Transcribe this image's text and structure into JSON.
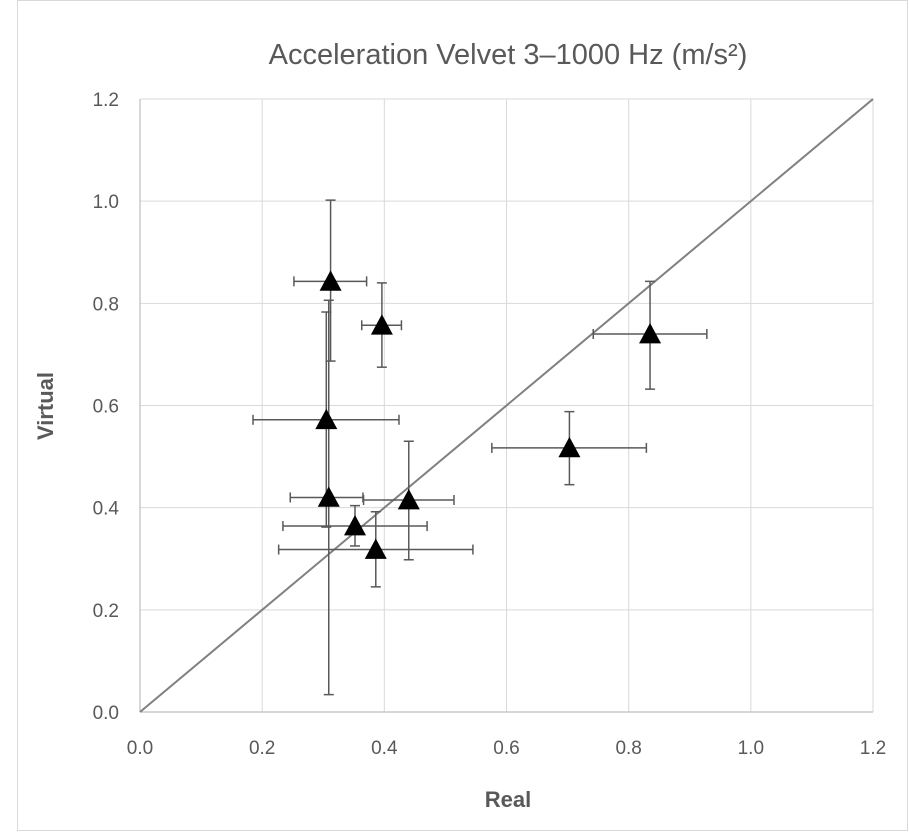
{
  "chart_data": {
    "type": "scatter",
    "title": "Acceleration Velvet 3–1000 Hz (m/s²)",
    "xlabel": "Real",
    "ylabel": "Virtual",
    "xlim": [
      0.0,
      1.2
    ],
    "ylim": [
      0.0,
      1.2
    ],
    "x_ticks": [
      "0.0",
      "0.2",
      "0.4",
      "0.6",
      "0.8",
      "1.0",
      "1.2"
    ],
    "y_ticks": [
      "0.0",
      "0.2",
      "0.4",
      "0.6",
      "0.8",
      "1.0",
      "1.2"
    ],
    "grid": true,
    "legend": "none",
    "reference_line": {
      "x": [
        0.0,
        1.2
      ],
      "y": [
        0.0,
        1.2
      ]
    },
    "series": [
      {
        "marker": "triangle",
        "color": "#000000",
        "points": [
          {
            "x": 0.312,
            "y": 0.843,
            "x_err": [
              0.252,
              0.371
            ],
            "y_err": [
              0.687,
              1.002
            ]
          },
          {
            "x": 0.396,
            "y": 0.757,
            "x_err": [
              0.363,
              0.428
            ],
            "y_err": [
              0.675,
              0.84
            ]
          },
          {
            "x": 0.305,
            "y": 0.572,
            "x_err": [
              0.185,
              0.424
            ],
            "y_err": [
              0.362,
              0.783
            ]
          },
          {
            "x": 0.309,
            "y": 0.42,
            "x_err": [
              0.246,
              0.365
            ],
            "y_err": [
              0.034,
              0.806
            ]
          },
          {
            "x": 0.352,
            "y": 0.364,
            "x_err": [
              0.234,
              0.47
            ],
            "y_err": [
              0.325,
              0.404
            ]
          },
          {
            "x": 0.386,
            "y": 0.318,
            "x_err": [
              0.227,
              0.545
            ],
            "y_err": [
              0.245,
              0.392
            ]
          },
          {
            "x": 0.44,
            "y": 0.415,
            "x_err": [
              0.366,
              0.514
            ],
            "y_err": [
              0.298,
              0.53
            ]
          },
          {
            "x": 0.703,
            "y": 0.517,
            "x_err": [
              0.576,
              0.829
            ],
            "y_err": [
              0.445,
              0.588
            ]
          },
          {
            "x": 0.835,
            "y": 0.74,
            "x_err": [
              0.742,
              0.928
            ],
            "y_err": [
              0.632,
              0.843
            ]
          }
        ]
      }
    ]
  }
}
